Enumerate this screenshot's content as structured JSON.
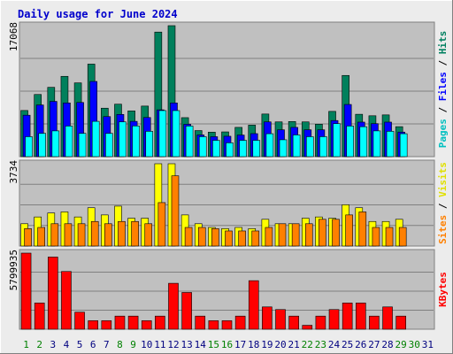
{
  "chart_data": {
    "type": "bar",
    "title": "Daily usage for June 2024",
    "categories": [
      "1",
      "2",
      "3",
      "4",
      "5",
      "6",
      "7",
      "8",
      "9",
      "10",
      "11",
      "12",
      "13",
      "14",
      "15",
      "16",
      "17",
      "18",
      "19",
      "20",
      "21",
      "22",
      "23",
      "24",
      "25",
      "26",
      "27",
      "28",
      "29",
      "30",
      "31"
    ],
    "weekend_days": [
      "1",
      "2",
      "8",
      "9",
      "15",
      "16",
      "22",
      "23",
      "29",
      "30"
    ],
    "colors": {
      "background": "#ececec",
      "plot_background": "#c0c0c0",
      "title": "#0000cc",
      "hits": "#00805c",
      "files": "#0000ff",
      "pages": "#00ffff",
      "visits": "#ffff00",
      "sites": "#ff8000",
      "kbytes": "#ff0000",
      "weekday_label": "#000080",
      "weekend_label": "#008000"
    },
    "panels": [
      {
        "id": "hits_files_pages",
        "ymax_label": "17068",
        "ymax": 17068,
        "axis_labels": [
          {
            "text": "Pages",
            "color": "#00c0c0"
          },
          {
            "text": " / ",
            "color": "#000000"
          },
          {
            "text": "Files",
            "color": "#0000ff"
          },
          {
            "text": " / ",
            "color": "#000000"
          },
          {
            "text": "Hits",
            "color": "#008060"
          }
        ],
        "series": [
          {
            "key": "hits",
            "values": [
              6014,
              8101,
              9032,
              10464,
              9612,
              12059,
              6315,
              6837,
              5964,
              6590,
              16235,
              17068,
              5081,
              3398,
              3193,
              3225,
              3816,
              4107,
              5554,
              4529,
              4576,
              4529,
              4229,
              5899,
              10580,
              5521,
              5328,
              5440,
              3906,
              0,
              0
            ]
          },
          {
            "key": "files",
            "values": [
              5400,
              6734,
              7200,
              7000,
              7060,
              9800,
              5220,
              5500,
              4600,
              5100,
              6101,
              7000,
              4218,
              2829,
              2600,
              2659,
              2815,
              3000,
              4530,
              3500,
              3812,
              3500,
              3500,
              4706,
              6800,
              4500,
              4300,
              4500,
              3200,
              0,
              0
            ]
          },
          {
            "key": "pages",
            "values": [
              2600,
              3036,
              3357,
              3988,
              3036,
              4600,
              3036,
              4529,
              4000,
              3300,
              6000,
              6000,
              3988,
              2600,
              2125,
              1800,
              2125,
              2125,
              2989,
              2200,
              2829,
              2600,
              2600,
              4300,
              3988,
              3900,
              3357,
              3300,
              2989,
              0,
              0
            ]
          }
        ]
      },
      {
        "id": "visits_sites",
        "ymax_label": "3734",
        "ymax": 3734,
        "axis_labels": [
          {
            "text": "Sites",
            "color": "#ff8000"
          },
          {
            "text": " / ",
            "color": "#000000"
          },
          {
            "text": "Visits",
            "color": "#e0e000"
          }
        ],
        "series": [
          {
            "key": "visits",
            "values": [
              1012,
              1319,
              1499,
              1548,
              1319,
              1737,
              1411,
              1810,
              1262,
              1262,
              3734,
              3734,
              1411,
              1012,
              843,
              790,
              843,
              790,
              1212,
              1012,
              1012,
              1262,
              1319,
              1262,
              1871,
              1737,
              1114,
              1114,
              1212,
              0,
              0
            ]
          },
          {
            "key": "sites",
            "values": [
              790,
              843,
              1012,
              1012,
              1012,
              1114,
              1012,
              1114,
              1114,
              1012,
              1970,
              3185,
              843,
              843,
              790,
              684,
              684,
              684,
              843,
              1012,
              1012,
              1012,
              1212,
              1212,
              1411,
              1548,
              843,
              843,
              843,
              0,
              0
            ]
          }
        ]
      },
      {
        "id": "kbytes",
        "ymax_label": "5799935",
        "ymax": 5799935,
        "axis_labels": [
          {
            "text": "KBytes",
            "color": "#ff0000"
          }
        ],
        "series": [
          {
            "key": "kbytes",
            "values": [
              5799935,
              2000000,
              5500000,
              4400000,
              1300000,
              650000,
              650000,
              1000000,
              1000000,
              650000,
              1000000,
              3500000,
              2800000,
              1000000,
              650000,
              650000,
              1000000,
              3700000,
              1700000,
              1500000,
              1000000,
              300000,
              1000000,
              1500000,
              2000000,
              2000000,
              1000000,
              1700000,
              1000000,
              0,
              0
            ]
          }
        ]
      }
    ]
  }
}
